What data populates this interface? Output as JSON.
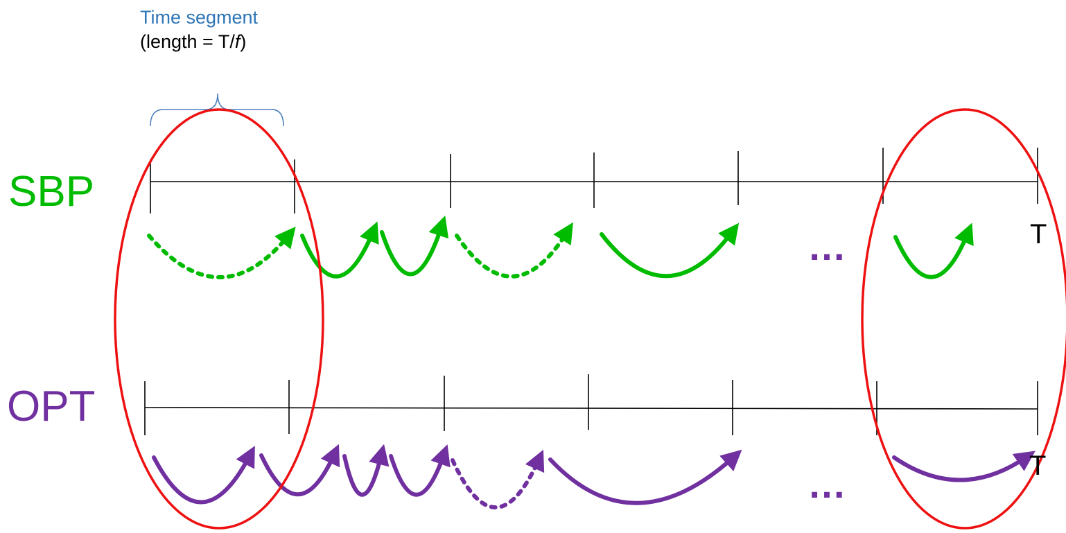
{
  "annotation": {
    "title": "Time segment",
    "length_prefix": "(length = ",
    "length_value": "T/",
    "length_var": "f",
    "length_suffix": ")"
  },
  "rows": {
    "sbp": {
      "label": "SBP",
      "end_label": "T",
      "ellipsis": "…"
    },
    "opt": {
      "label": "OPT",
      "end_label": "T",
      "ellipsis": "…"
    }
  },
  "colors": {
    "sbp": "#00bb00",
    "opt": "#7030a0",
    "ellipse": "#ee1111",
    "brace": "#4a7ebb",
    "annotation_title": "#2e75b6",
    "timeline": "#000000"
  }
}
